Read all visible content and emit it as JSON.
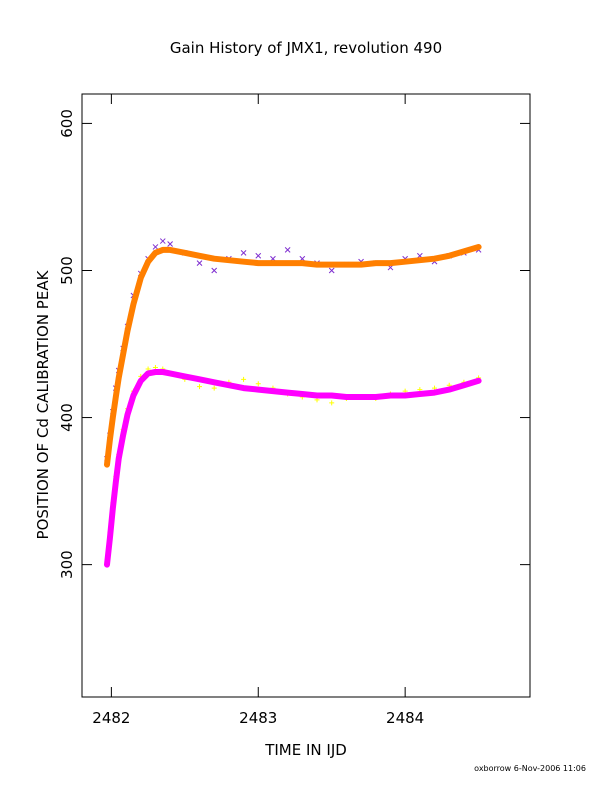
{
  "chart_data": {
    "type": "scatter",
    "title": "Gain History of JMX1, revolution 490",
    "xlabel": "TIME IN IJD",
    "ylabel": "POSITION OF Cd CALIBRATION PEAK",
    "xlim": [
      2481.8,
      2484.85
    ],
    "ylim": [
      210,
      620
    ],
    "xticks": [
      "2482",
      "2483",
      "2484"
    ],
    "yticks": [
      "300",
      "400",
      "500",
      "600"
    ],
    "grid": false,
    "legend": "none",
    "x": [
      2481.97,
      2481.99,
      2482.01,
      2482.03,
      2482.05,
      2482.08,
      2482.11,
      2482.15,
      2482.2,
      2482.25,
      2482.3,
      2482.35,
      2482.4,
      2482.5,
      2482.6,
      2482.7,
      2482.8,
      2482.9,
      2483.0,
      2483.1,
      2483.2,
      2483.3,
      2483.4,
      2483.5,
      2483.6,
      2483.7,
      2483.8,
      2483.9,
      2484.0,
      2484.1,
      2484.2,
      2484.3,
      2484.4,
      2484.5
    ],
    "series": [
      {
        "color": "#ff7f00",
        "marker": "curve",
        "values": [
          368,
          385,
          400,
          414,
          427,
          443,
          459,
          477,
          495,
          506,
          512,
          514,
          514,
          512,
          510,
          508,
          507,
          506,
          505,
          505,
          505,
          505,
          504,
          504,
          504,
          504,
          505,
          505,
          506,
          507,
          508,
          510,
          513,
          516
        ]
      },
      {
        "color": "#7f2fd0",
        "marker": "x",
        "values": [
          372,
          388,
          404,
          420,
          432,
          447,
          462,
          483,
          498,
          508,
          516,
          520,
          518,
          512,
          505,
          500,
          508,
          512,
          510,
          508,
          514,
          508,
          505,
          500,
          504,
          506,
          505,
          502,
          508,
          510,
          506,
          510,
          512,
          514
        ]
      },
      {
        "color": "#ff00ff",
        "marker": "curve",
        "values": [
          300,
          318,
          338,
          356,
          372,
          388,
          402,
          415,
          425,
          430,
          431,
          431,
          430,
          428,
          426,
          424,
          422,
          420,
          419,
          418,
          417,
          416,
          415,
          415,
          414,
          414,
          414,
          415,
          415,
          416,
          417,
          419,
          422,
          425
        ]
      },
      {
        "color": "#ffff00",
        "marker": "+",
        "values": [
          302,
          322,
          342,
          360,
          375,
          392,
          406,
          418,
          428,
          433,
          434,
          433,
          430,
          426,
          421,
          420,
          424,
          426,
          423,
          420,
          416,
          414,
          412,
          410,
          413,
          414,
          413,
          416,
          418,
          419,
          420,
          422,
          424,
          427
        ]
      }
    ],
    "footer": "oxborrow   6-Nov-2006 11:06"
  }
}
